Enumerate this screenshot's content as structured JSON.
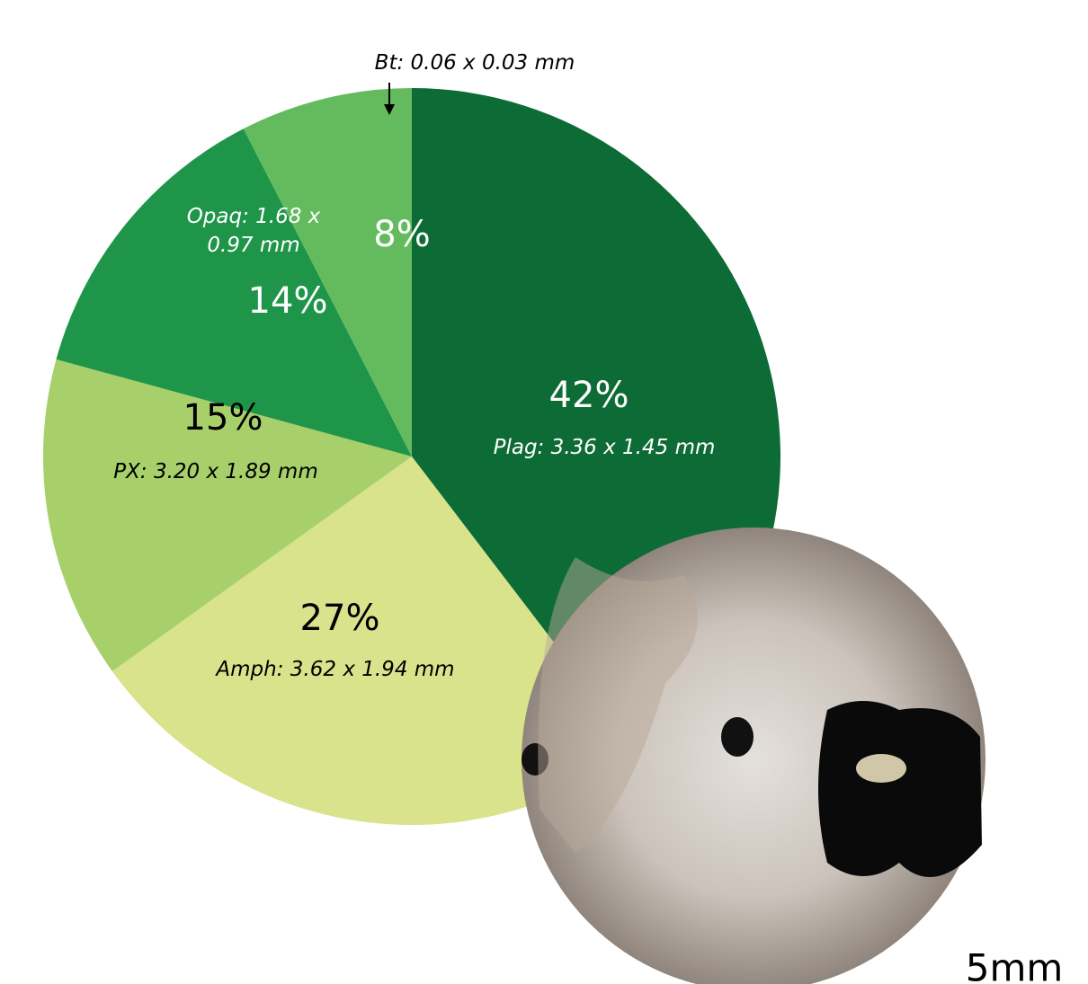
{
  "chart_data": {
    "type": "pie",
    "categories": [
      "Plag: 3.36 x 1.45 mm",
      "Amph: 3.62 x 1.94 mm",
      "PX: 3.20 x 1.89 mm",
      "Opaq: 1.68 x 0.97 mm",
      "Bt: 0.06 x 0.03 mm"
    ],
    "values": [
      42,
      27,
      15,
      14,
      8
    ],
    "value_labels": [
      "42%",
      "27%",
      "15%",
      "14%",
      "8%"
    ],
    "colors": [
      "#0d6b36",
      "#d8e38b",
      "#a7d06b",
      "#1f9549",
      "#64bb5e"
    ],
    "scale_label": "5mm"
  }
}
